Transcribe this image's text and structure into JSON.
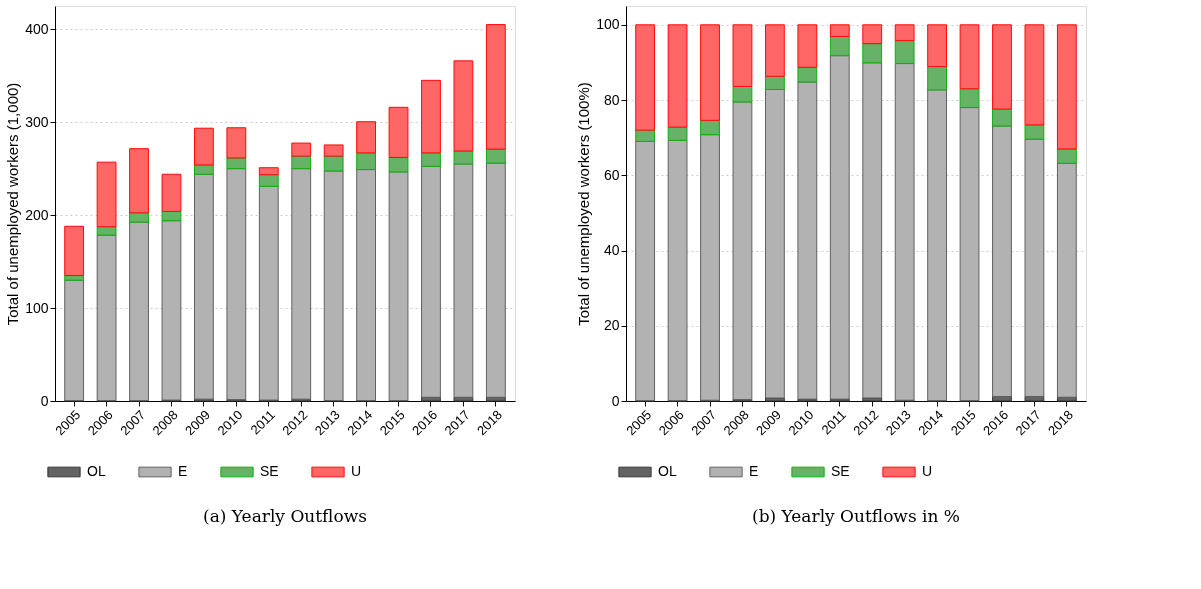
{
  "chart_data": [
    {
      "type": "bar",
      "title": "(a) Yearly Outflows",
      "ylabel": "Total of unemployed workers (1,000)",
      "stacked": true,
      "legend": "bottom",
      "grid": "y",
      "categories": [
        "2005",
        "2006",
        "2007",
        "2008",
        "2009",
        "2010",
        "2011",
        "2012",
        "2013",
        "2014",
        "2015",
        "2016",
        "2017",
        "2018"
      ],
      "ylim": [
        0,
        425
      ],
      "yticks": [
        0,
        100,
        200,
        300,
        400
      ],
      "series": [
        {
          "name": "OL",
          "color": "#636363",
          "values": [
            0.5,
            0.5,
            0.5,
            1,
            2,
            1.5,
            1,
            2,
            0.5,
            0.5,
            0.5,
            4,
            4,
            4
          ]
        },
        {
          "name": "E",
          "color": "#b2b2b2",
          "values": [
            129.5,
            178,
            192,
            193,
            242,
            248.5,
            230,
            248,
            247,
            248.5,
            246,
            248.5,
            251,
            252
          ]
        },
        {
          "name": "SE",
          "color": "#66b266",
          "values": [
            5,
            9,
            10,
            10,
            10,
            11.5,
            12.5,
            13.5,
            16,
            18,
            15.5,
            14.5,
            14,
            15
          ]
        },
        {
          "name": "U",
          "color": "#ff6666",
          "values": [
            53,
            69.5,
            69,
            40,
            39.5,
            32.5,
            7.5,
            14,
            12,
            33.5,
            54,
            78,
            97,
            134
          ]
        }
      ]
    },
    {
      "type": "bar",
      "title": "(b) Yearly Outflows in %",
      "ylabel": "Total of unemployed workers (100%)",
      "stacked": true,
      "legend": "bottom",
      "grid": "y",
      "categories": [
        "2005",
        "2006",
        "2007",
        "2008",
        "2009",
        "2010",
        "2011",
        "2012",
        "2013",
        "2014",
        "2015",
        "2016",
        "2017",
        "2018"
      ],
      "ylim": [
        0,
        105
      ],
      "yticks": [
        0,
        20,
        40,
        60,
        80,
        100
      ],
      "series": [
        {
          "name": "OL",
          "color": "#636363",
          "values": [
            0.1,
            0.1,
            0.2,
            0.4,
            0.8,
            0.5,
            0.5,
            0.8,
            0.2,
            0.1,
            0.1,
            1.2,
            1.2,
            1
          ]
        },
        {
          "name": "E",
          "color": "#b2b2b2",
          "values": [
            68.9,
            69.2,
            70.6,
            79.1,
            82,
            84.3,
            91.3,
            89.1,
            89.5,
            82.6,
            77.9,
            71.9,
            68.4,
            62.2
          ]
        },
        {
          "name": "SE",
          "color": "#66b266",
          "values": [
            3,
            3.5,
            3.8,
            4.1,
            3.5,
            3.9,
            5.1,
            5.1,
            6.1,
            6.2,
            5,
            4.5,
            3.8,
            3.8
          ]
        },
        {
          "name": "U",
          "color": "#ff6666",
          "values": [
            28,
            27.2,
            25.4,
            16.4,
            13.7,
            11.3,
            3.1,
            5,
            4.2,
            11.1,
            17,
            22.4,
            26.6,
            33
          ]
        }
      ]
    }
  ]
}
